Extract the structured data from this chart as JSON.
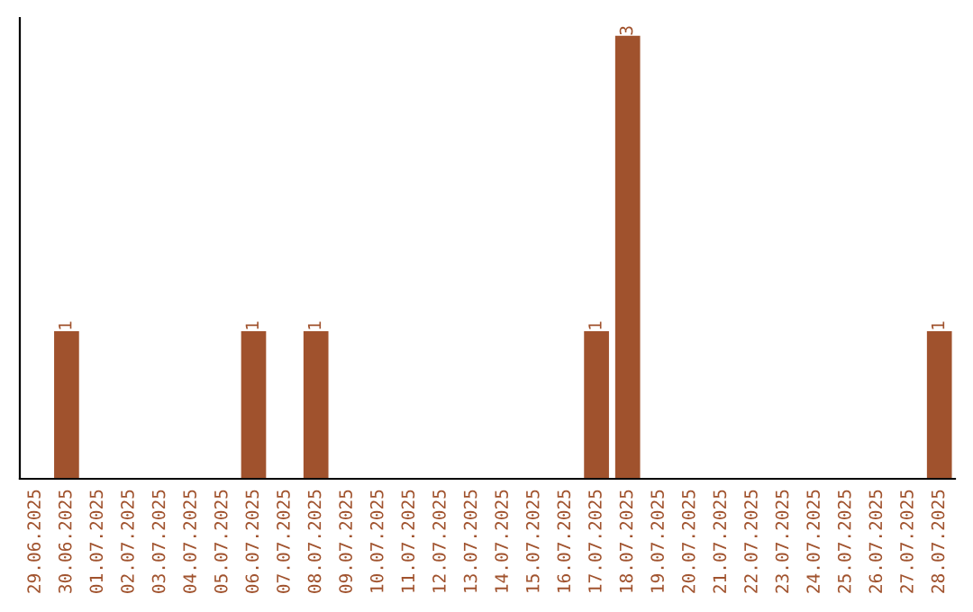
{
  "chart_data": {
    "type": "bar",
    "categories": [
      "29.06.2025",
      "30.06.2025",
      "01.07.2025",
      "02.07.2025",
      "03.07.2025",
      "04.07.2025",
      "05.07.2025",
      "06.07.2025",
      "07.07.2025",
      "08.07.2025",
      "09.07.2025",
      "10.07.2025",
      "11.07.2025",
      "12.07.2025",
      "13.07.2025",
      "14.07.2025",
      "15.07.2025",
      "16.07.2025",
      "17.07.2025",
      "18.07.2025",
      "19.07.2025",
      "20.07.2025",
      "21.07.2025",
      "22.07.2025",
      "23.07.2025",
      "24.07.2025",
      "25.07.2025",
      "26.07.2025",
      "27.07.2025",
      "28.07.2025"
    ],
    "values": [
      0,
      1,
      0,
      0,
      0,
      0,
      0,
      1,
      0,
      1,
      0,
      0,
      0,
      0,
      0,
      0,
      0,
      0,
      1,
      3,
      0,
      0,
      0,
      0,
      0,
      0,
      0,
      0,
      0,
      1
    ],
    "value_labels": [
      null,
      "1",
      null,
      null,
      null,
      null,
      null,
      "1",
      null,
      "1",
      null,
      null,
      null,
      null,
      null,
      null,
      null,
      null,
      "1",
      "3",
      null,
      null,
      null,
      null,
      null,
      null,
      null,
      null,
      null,
      "1"
    ],
    "color": "#a0522d",
    "ylim": [
      0,
      3.12
    ],
    "tick_labels": "x",
    "grid": false,
    "legend": false
  }
}
